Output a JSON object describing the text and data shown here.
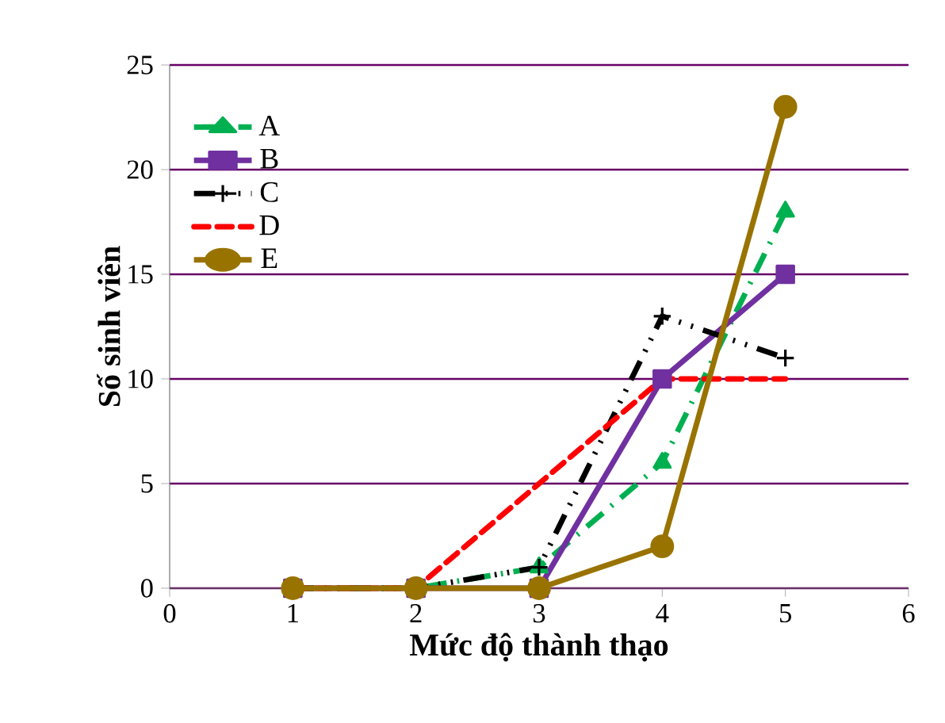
{
  "chart_data": {
    "type": "line",
    "xlabel": "Mức độ thành thạo",
    "ylabel": "Số sinh viên",
    "x": [
      1,
      2,
      3,
      4,
      5
    ],
    "xlim": [
      0,
      6
    ],
    "xticks": [
      0,
      1,
      2,
      3,
      4,
      5,
      6
    ],
    "ylim": [
      0,
      25
    ],
    "yticks": [
      0,
      5,
      10,
      15,
      20,
      25
    ],
    "grid": "y",
    "legend": "top left",
    "series": [
      {
        "name": "A",
        "color": "#00b050",
        "values": [
          0,
          0,
          1,
          6,
          18
        ],
        "marker": "triangle",
        "line_style": "dashdot"
      },
      {
        "name": "B",
        "color": "#7030a0",
        "values": [
          0,
          0,
          0,
          10,
          15
        ],
        "marker": "square",
        "line_style": "solid"
      },
      {
        "name": "C",
        "color": "#000000",
        "values": [
          0,
          0,
          1,
          13,
          11
        ],
        "marker": "cross",
        "line_style": "dashdotdot"
      },
      {
        "name": "D",
        "color": "#ff0000",
        "values": [
          0,
          0,
          5,
          10,
          10
        ],
        "marker": "none",
        "line_style": "dashed"
      },
      {
        "name": "E",
        "color": "#997300",
        "values": [
          0,
          0,
          0,
          2,
          23
        ],
        "marker": "circle",
        "line_style": "solid"
      }
    ]
  }
}
